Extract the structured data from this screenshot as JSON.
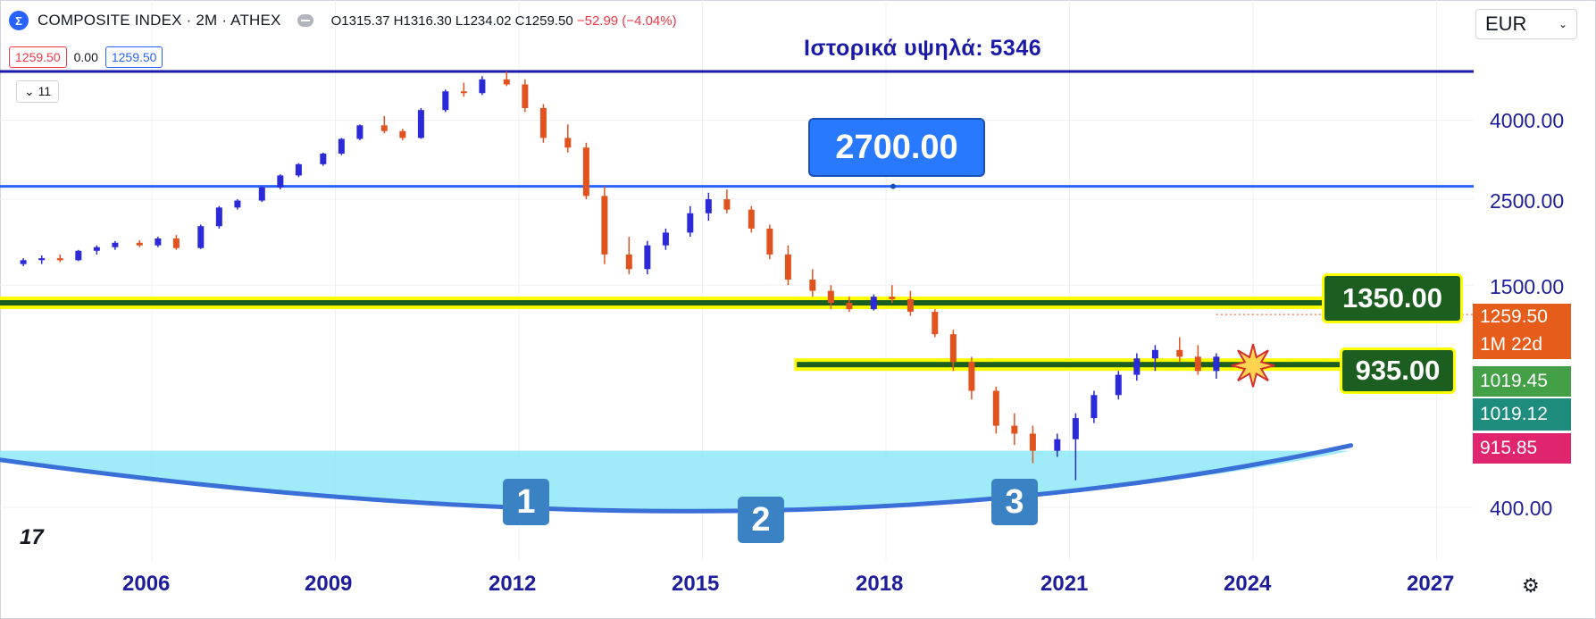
{
  "header": {
    "symbol": "COMPOSITE INDEX · 2M · ATHEX",
    "logo_letter": "Σ",
    "ohlc": "O1315.37 H1316.30 L1234.02 C1259.50",
    "change": "−52.99 (−4.04%)",
    "price_left": "1259.50",
    "spread": "0.00",
    "price_right": "1259.50",
    "indicator_count": "11",
    "collapse_icon": "chevron-down-icon"
  },
  "currency": {
    "label": "EUR",
    "icon": "chevron-down-icon"
  },
  "annotation": {
    "ath_text": "Ιστορικά υψηλά: 5346"
  },
  "levels": {
    "level_2700": "2700.00",
    "level_1350": "1350.00",
    "level_935": "935.00"
  },
  "price_tags": {
    "last": "1259.50",
    "countdown": "1M 22d",
    "ma_green": "1019.45",
    "ma_teal": "1019.12",
    "ma_red": "915.85"
  },
  "badges": [
    "1",
    "2",
    "3"
  ],
  "y_ticks": [
    "4000.00",
    "2500.00",
    "1500.00",
    "400.00"
  ],
  "x_ticks": [
    "2006",
    "2009",
    "2012",
    "2015",
    "2018",
    "2021",
    "2024",
    "2027"
  ],
  "colors": {
    "up": "#2a2ad8",
    "down": "#e0531f",
    "level_line": "#2962ff",
    "ath_line": "#1a1aa8",
    "highlight_yellow": "#ffff00",
    "highlight_dark": "#1b5e20",
    "bowl_fill": "#8ee8f8",
    "bowl_line": "#3a6fd8",
    "dots_red": "#e8623f",
    "dots_teal": "#26a69a",
    "trail_red": "#e0246d",
    "trail_green": "#43a047"
  },
  "chart_data": {
    "type": "candlestick",
    "scale": "log",
    "interval": "2M",
    "y_ticks": [
      400,
      1500,
      2500,
      4000
    ],
    "x_ticks": [
      2006,
      2009,
      2012,
      2015,
      2018,
      2021,
      2024,
      2027
    ],
    "horizontal_levels": [
      {
        "value": 5346,
        "label": "Ιστορικά υψηλά: 5346"
      },
      {
        "value": 2700,
        "label": "2700.00"
      },
      {
        "value": 1350,
        "label": "1350.00"
      },
      {
        "value": 935,
        "label": "935.00"
      }
    ],
    "rounding_bottom_lows": [
      {
        "label": "1",
        "year": 2012.3,
        "value": 470
      },
      {
        "label": "2",
        "year": 2016.0,
        "value": 420
      },
      {
        "label": "3",
        "year": 2020.2,
        "value": 490
      }
    ],
    "last_price": 1259.5,
    "candles": [
      [
        2003.9,
        1700,
        1760,
        1680,
        1740
      ],
      [
        2004.2,
        1740,
        1790,
        1700,
        1760
      ],
      [
        2004.5,
        1760,
        1800,
        1720,
        1740
      ],
      [
        2004.8,
        1740,
        1850,
        1730,
        1840
      ],
      [
        2005.1,
        1840,
        1900,
        1800,
        1880
      ],
      [
        2005.4,
        1880,
        1950,
        1850,
        1930
      ],
      [
        2005.8,
        1930,
        1960,
        1880,
        1900
      ],
      [
        2006.1,
        1900,
        2000,
        1880,
        1980
      ],
      [
        2006.4,
        1980,
        2020,
        1850,
        1870
      ],
      [
        2006.8,
        1870,
        2150,
        1860,
        2130
      ],
      [
        2007.1,
        2130,
        2400,
        2100,
        2380
      ],
      [
        2007.4,
        2380,
        2500,
        2350,
        2480
      ],
      [
        2007.8,
        2480,
        2700,
        2460,
        2680
      ],
      [
        2008.1,
        2680,
        2900,
        2650,
        2880
      ],
      [
        2008.4,
        2880,
        3100,
        2850,
        3080
      ],
      [
        2008.8,
        3080,
        3300,
        3050,
        3280
      ],
      [
        2009.1,
        3280,
        3600,
        3250,
        3580
      ],
      [
        2009.4,
        3580,
        3900,
        3550,
        3880
      ],
      [
        2009.8,
        3880,
        4100,
        3700,
        3750
      ],
      [
        2010.1,
        3750,
        3800,
        3550,
        3600
      ],
      [
        2010.4,
        3600,
        4300,
        3580,
        4250
      ],
      [
        2010.8,
        4250,
        4800,
        4200,
        4750
      ],
      [
        2011.1,
        4750,
        5000,
        4600,
        4700
      ],
      [
        2011.4,
        4700,
        5200,
        4650,
        5100
      ],
      [
        2011.8,
        5100,
        5346,
        4900,
        4950
      ],
      [
        2012.1,
        4950,
        5100,
        4200,
        4300
      ],
      [
        2012.4,
        4300,
        4400,
        3500,
        3600
      ],
      [
        2012.8,
        3600,
        3900,
        3300,
        3400
      ],
      [
        2013.1,
        3400,
        3500,
        2500,
        2550
      ],
      [
        2013.4,
        2550,
        2700,
        1700,
        1800
      ],
      [
        2013.8,
        1800,
        2000,
        1600,
        1650
      ],
      [
        2014.1,
        1650,
        1950,
        1600,
        1900
      ],
      [
        2014.4,
        1900,
        2100,
        1850,
        2050
      ],
      [
        2014.8,
        2050,
        2400,
        2000,
        2300
      ],
      [
        2015.1,
        2300,
        2600,
        2200,
        2500
      ],
      [
        2015.4,
        2500,
        2650,
        2300,
        2350
      ],
      [
        2015.8,
        2350,
        2400,
        2050,
        2100
      ],
      [
        2016.1,
        2100,
        2150,
        1750,
        1800
      ],
      [
        2016.4,
        1800,
        1900,
        1500,
        1550
      ],
      [
        2016.8,
        1550,
        1650,
        1400,
        1450
      ],
      [
        2017.1,
        1450,
        1500,
        1300,
        1350
      ],
      [
        2017.4,
        1350,
        1400,
        1280,
        1300
      ],
      [
        2017.8,
        1300,
        1420,
        1290,
        1400
      ],
      [
        2018.1,
        1400,
        1500,
        1350,
        1380
      ],
      [
        2018.4,
        1380,
        1450,
        1250,
        1280
      ],
      [
        2018.8,
        1280,
        1300,
        1100,
        1120
      ],
      [
        2019.1,
        1120,
        1150,
        900,
        950
      ],
      [
        2019.4,
        950,
        980,
        760,
        800
      ],
      [
        2019.8,
        800,
        820,
        620,
        650
      ],
      [
        2020.1,
        650,
        700,
        580,
        620
      ],
      [
        2020.4,
        620,
        650,
        520,
        560
      ],
      [
        2020.8,
        560,
        620,
        540,
        600
      ],
      [
        2021.1,
        600,
        700,
        470,
        680
      ],
      [
        2021.4,
        680,
        800,
        660,
        780
      ],
      [
        2021.8,
        780,
        900,
        760,
        880
      ],
      [
        2022.1,
        880,
        1000,
        850,
        970
      ],
      [
        2022.4,
        970,
        1050,
        900,
        1020
      ],
      [
        2022.8,
        1020,
        1100,
        950,
        980
      ],
      [
        2023.1,
        980,
        1050,
        880,
        900
      ],
      [
        2023.4,
        900,
        1000,
        860,
        980
      ]
    ]
  }
}
